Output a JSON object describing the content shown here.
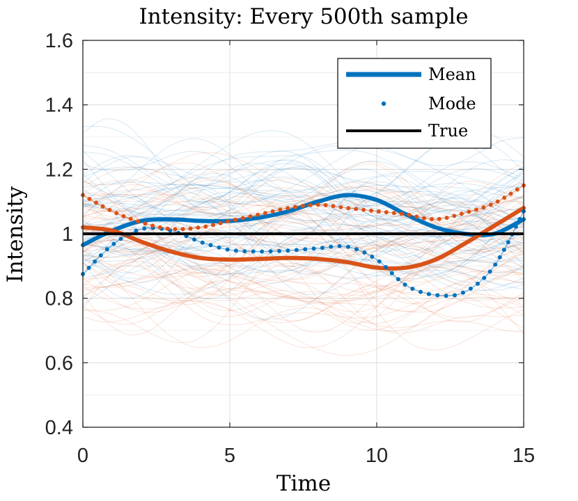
{
  "chart_data": {
    "type": "line",
    "title": "Intensity: Every 500th sample",
    "xlabel": "Time",
    "ylabel": "Intensity",
    "xlim": [
      0,
      15
    ],
    "ylim": [
      0.4,
      1.6
    ],
    "xticks": [
      0,
      5,
      10,
      15
    ],
    "yticks": [
      0.4,
      0.6,
      0.8,
      1.0,
      1.2,
      1.4,
      1.6
    ],
    "ytick_labels": [
      "0.4",
      "0.6",
      "0.8",
      "1",
      "1.2",
      "1.4",
      "1.6"
    ],
    "xtick_labels": [
      "0",
      "5",
      "10",
      "15"
    ],
    "grid": true,
    "legend": {
      "position": "top-right",
      "entries": [
        {
          "label": "Mean",
          "style": "thick-line"
        },
        {
          "label": "Mode",
          "style": "dotted"
        },
        {
          "label": "True",
          "style": "line"
        }
      ]
    },
    "series": [
      {
        "name": "Mean (blue)",
        "color": "#0072BD",
        "style": "thick-line",
        "x": [
          0,
          1,
          2,
          3,
          4,
          5,
          6,
          7,
          8,
          9,
          10,
          11,
          12,
          13,
          14,
          15
        ],
        "y": [
          0.965,
          1.01,
          1.04,
          1.045,
          1.04,
          1.04,
          1.05,
          1.07,
          1.1,
          1.12,
          1.105,
          1.06,
          1.02,
          1.0,
          1.0,
          1.045
        ]
      },
      {
        "name": "Mean (red)",
        "color": "#D95319",
        "style": "thick-line",
        "x": [
          0,
          1,
          2,
          3,
          4,
          5,
          6,
          7,
          8,
          9,
          10,
          11,
          12,
          13,
          14,
          15
        ],
        "y": [
          1.02,
          1.01,
          0.975,
          0.945,
          0.925,
          0.92,
          0.922,
          0.925,
          0.922,
          0.912,
          0.895,
          0.895,
          0.92,
          0.97,
          1.025,
          1.08
        ]
      },
      {
        "name": "Mode (blue)",
        "color": "#0072BD",
        "style": "dotted",
        "x": [
          0,
          1,
          2,
          3,
          4,
          5,
          6,
          7,
          8,
          9,
          10,
          11,
          12,
          13,
          14,
          15
        ],
        "y": [
          0.875,
          0.965,
          1.015,
          1.01,
          0.975,
          0.95,
          0.945,
          0.948,
          0.955,
          0.96,
          0.92,
          0.84,
          0.81,
          0.82,
          0.9,
          1.07
        ]
      },
      {
        "name": "Mode (red)",
        "color": "#D95319",
        "style": "dotted",
        "x": [
          0,
          1,
          2,
          3,
          4,
          5,
          6,
          7,
          8,
          9,
          10,
          11,
          12,
          13,
          14,
          15
        ],
        "y": [
          1.12,
          1.07,
          1.035,
          1.015,
          1.02,
          1.04,
          1.06,
          1.08,
          1.09,
          1.08,
          1.07,
          1.06,
          1.045,
          1.065,
          1.095,
          1.15
        ]
      },
      {
        "name": "True",
        "color": "#000000",
        "style": "line",
        "x": [
          0,
          15
        ],
        "y": [
          1.0,
          1.0
        ]
      }
    ],
    "sample_bands": [
      {
        "name": "blue samples",
        "color": "#0072BD",
        "count": 60,
        "center": 1.06,
        "spread": 0.16
      },
      {
        "name": "red samples",
        "color": "#D95319",
        "count": 60,
        "center": 0.95,
        "spread": 0.17
      }
    ]
  }
}
